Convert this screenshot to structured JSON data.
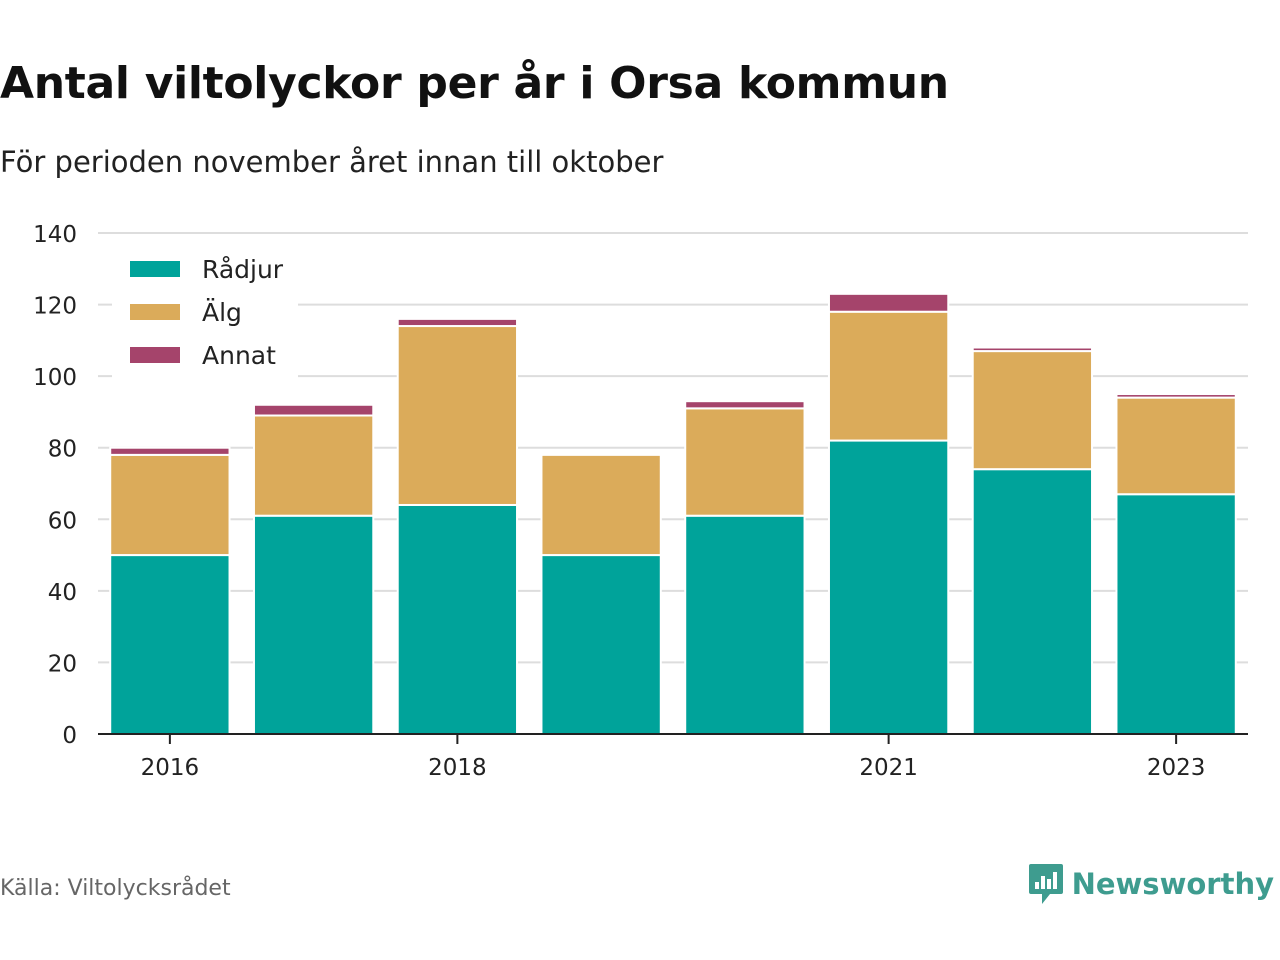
{
  "title": "Antal viltolyckor per år i Orsa kommun",
  "subtitle": "För perioden november året innan till oktober",
  "source": "Källa: Viltolycksrådet",
  "brand": {
    "name": "Newsworthy",
    "icon": "newsworthy-logo-icon",
    "color": "#3e9c8f"
  },
  "chart_data": {
    "type": "bar",
    "stacked": true,
    "categories": [
      "2016",
      "2017",
      "2018",
      "2019",
      "2020",
      "2021",
      "2022",
      "2023"
    ],
    "x_tick_labels": [
      "2016",
      "",
      "2018",
      "",
      "",
      "2021",
      "",
      "2023"
    ],
    "series": [
      {
        "name": "Rådjur",
        "color": "#00a39a",
        "values": [
          50,
          61,
          64,
          50,
          61,
          82,
          74,
          67
        ]
      },
      {
        "name": "Älg",
        "color": "#dbab5a",
        "values": [
          28,
          28,
          50,
          28,
          30,
          36,
          33,
          27
        ]
      },
      {
        "name": "Annat",
        "color": "#a5446b",
        "values": [
          2,
          3,
          2,
          0,
          2,
          5,
          1,
          1
        ]
      }
    ],
    "ylim": [
      0,
      140
    ],
    "yticks": [
      0,
      20,
      40,
      60,
      80,
      100,
      120,
      140
    ],
    "grid": true,
    "legend_position": "top-left"
  }
}
